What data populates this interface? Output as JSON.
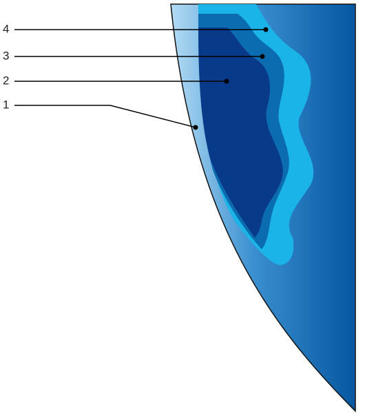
{
  "labels": [
    "4",
    "3",
    "2",
    "1"
  ]
}
